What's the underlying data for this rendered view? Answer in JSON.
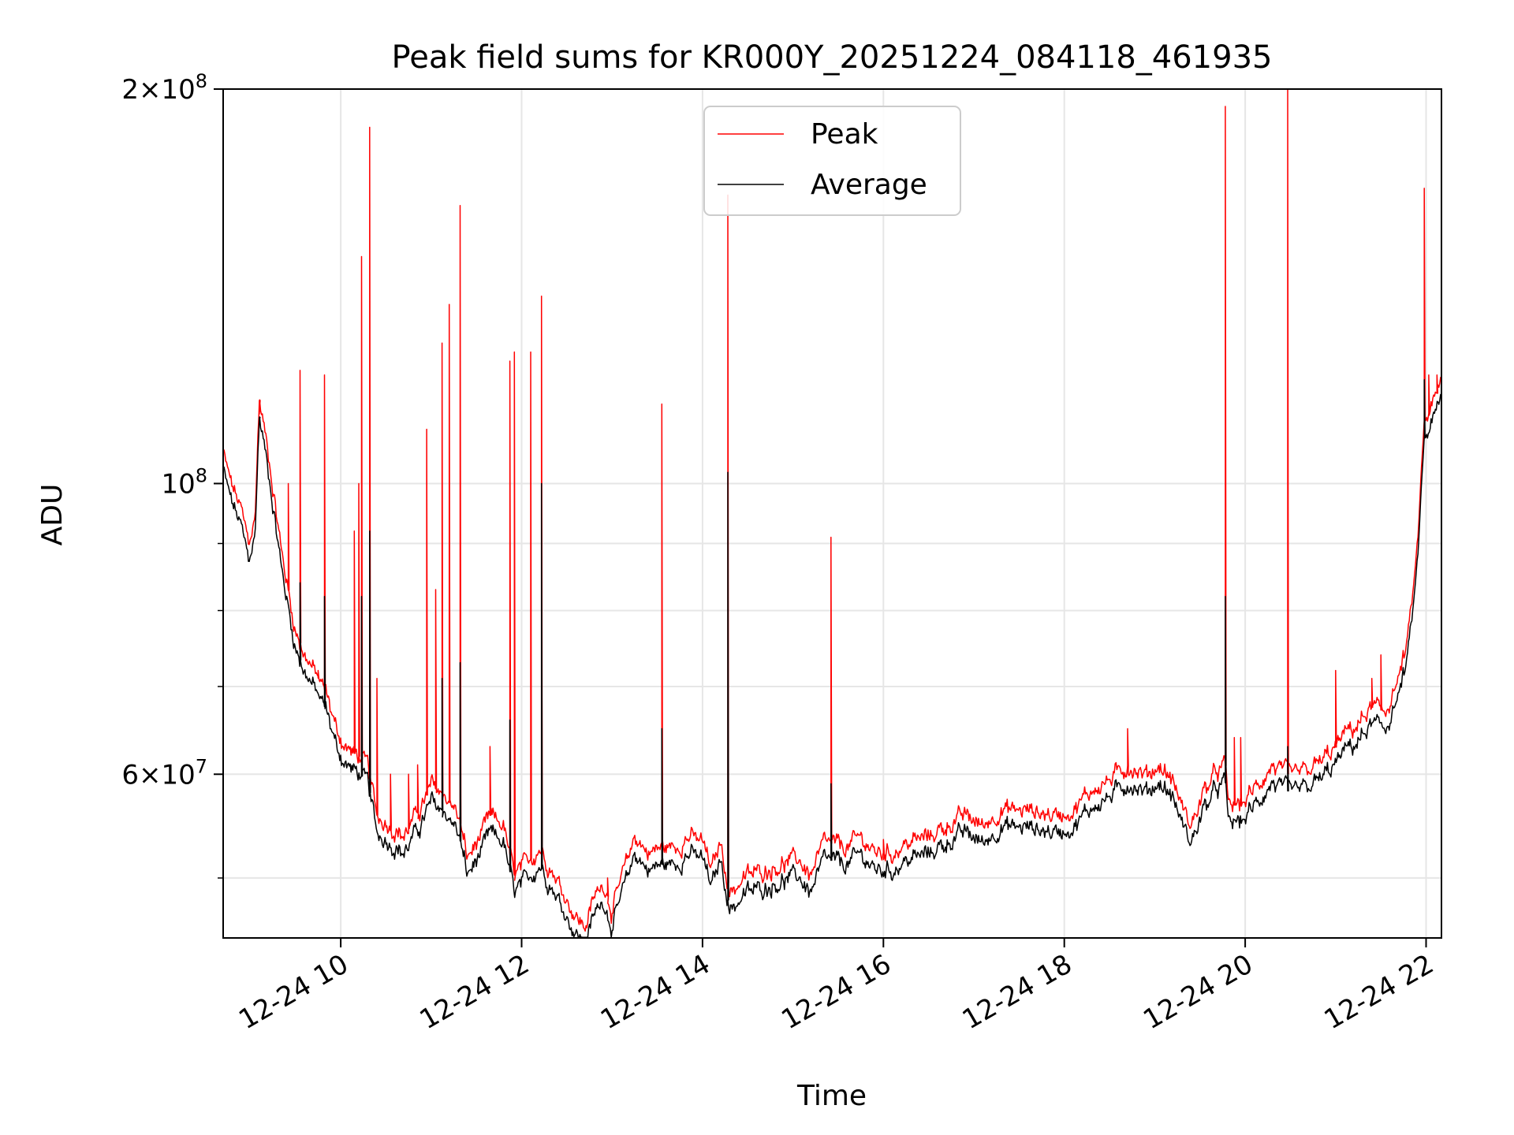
{
  "chart_data": {
    "type": "line",
    "title": "Peak field sums for KR000Y_20251224_084118_461935",
    "xlabel": "Time",
    "ylabel": "ADU",
    "yscale": "log",
    "ylim": [
      45000000,
      200000000
    ],
    "xlim": [
      8.7,
      22.17
    ],
    "grid": true,
    "legend_position": "top-center",
    "x_ticks": [
      {
        "value": 10,
        "label": "12-24 10"
      },
      {
        "value": 12,
        "label": "12-24 12"
      },
      {
        "value": 14,
        "label": "12-24 14"
      },
      {
        "value": 16,
        "label": "12-24 16"
      },
      {
        "value": 18,
        "label": "12-24 18"
      },
      {
        "value": 20,
        "label": "12-24 20"
      },
      {
        "value": 22,
        "label": "12-24 22"
      }
    ],
    "y_ticks_major": [
      {
        "value": 60000000,
        "label_mantissa": "6",
        "label_base": "10",
        "label_exp": "7"
      },
      {
        "value": 100000000,
        "label_mantissa": "",
        "label_base": "10",
        "label_exp": "8"
      },
      {
        "value": 200000000,
        "label_mantissa": "2",
        "label_base": "10",
        "label_exp": "8"
      }
    ],
    "y_gridlines": [
      50000000,
      60000000,
      70000000,
      80000000,
      90000000,
      100000000,
      200000000
    ],
    "baseline": [
      [
        8.7,
        104000000
      ],
      [
        8.78,
        99000000
      ],
      [
        8.9,
        94000000
      ],
      [
        8.98,
        89000000
      ],
      [
        9.05,
        92000000
      ],
      [
        9.1,
        114000000
      ],
      [
        9.2,
        104000000
      ],
      [
        9.35,
        87000000
      ],
      [
        9.5,
        76000000
      ],
      [
        9.6,
        73000000
      ],
      [
        9.75,
        70000000
      ],
      [
        9.85,
        68000000
      ],
      [
        9.95,
        64000000
      ],
      [
        10.05,
        62000000
      ],
      [
        10.2,
        61000000
      ],
      [
        10.3,
        60000000
      ],
      [
        10.4,
        55000000
      ],
      [
        10.55,
        54000000
      ],
      [
        10.7,
        53000000
      ],
      [
        10.9,
        56000000
      ],
      [
        11.0,
        58000000
      ],
      [
        11.15,
        57000000
      ],
      [
        11.3,
        55000000
      ],
      [
        11.4,
        51000000
      ],
      [
        11.55,
        53000000
      ],
      [
        11.65,
        55000000
      ],
      [
        11.8,
        54000000
      ],
      [
        11.92,
        49500000
      ],
      [
        12.05,
        50500000
      ],
      [
        12.2,
        52000000
      ],
      [
        12.4,
        49000000
      ],
      [
        12.5,
        47500000
      ],
      [
        12.6,
        46000000
      ],
      [
        12.7,
        45200000
      ],
      [
        12.8,
        47500000
      ],
      [
        12.9,
        49000000
      ],
      [
        13.0,
        46500000
      ],
      [
        13.1,
        49000000
      ],
      [
        13.25,
        53000000
      ],
      [
        13.4,
        51500000
      ],
      [
        13.55,
        52000000
      ],
      [
        13.7,
        52000000
      ],
      [
        13.85,
        53000000
      ],
      [
        14.0,
        52500000
      ],
      [
        14.1,
        50000000
      ],
      [
        14.2,
        52500000
      ],
      [
        14.3,
        48000000
      ],
      [
        14.5,
        49500000
      ],
      [
        14.7,
        50000000
      ],
      [
        14.9,
        50500000
      ],
      [
        15.05,
        51000000
      ],
      [
        15.2,
        49500000
      ],
      [
        15.35,
        52500000
      ],
      [
        15.6,
        52000000
      ],
      [
        15.75,
        53000000
      ],
      [
        15.9,
        51500000
      ],
      [
        16.1,
        51500000
      ],
      [
        16.3,
        52500000
      ],
      [
        16.5,
        53000000
      ],
      [
        16.7,
        54000000
      ],
      [
        16.9,
        55000000
      ],
      [
        17.1,
        54000000
      ],
      [
        17.3,
        55500000
      ],
      [
        17.6,
        55500000
      ],
      [
        17.9,
        55000000
      ],
      [
        18.1,
        55500000
      ],
      [
        18.3,
        57500000
      ],
      [
        18.5,
        58500000
      ],
      [
        18.7,
        60000000
      ],
      [
        18.9,
        59000000
      ],
      [
        19.05,
        60000000
      ],
      [
        19.2,
        58500000
      ],
      [
        19.32,
        55500000
      ],
      [
        19.4,
        54000000
      ],
      [
        19.55,
        57500000
      ],
      [
        19.7,
        59500000
      ],
      [
        19.78,
        60000000
      ],
      [
        19.82,
        56000000
      ],
      [
        19.95,
        56000000
      ],
      [
        20.1,
        57500000
      ],
      [
        20.3,
        60000000
      ],
      [
        20.5,
        59000000
      ],
      [
        20.7,
        59500000
      ],
      [
        20.85,
        60500000
      ],
      [
        21.0,
        62000000
      ],
      [
        21.1,
        63500000
      ],
      [
        21.25,
        64500000
      ],
      [
        21.4,
        66500000
      ],
      [
        21.55,
        66000000
      ],
      [
        21.7,
        70000000
      ],
      [
        21.8,
        75000000
      ],
      [
        21.9,
        87000000
      ],
      [
        21.98,
        110000000
      ],
      [
        22.05,
        112000000
      ],
      [
        22.17,
        118000000
      ]
    ],
    "series": [
      {
        "name": "Peak",
        "color": "#ff0000",
        "offset_factor": 1.015,
        "spikes": [
          [
            9.1,
            113000000
          ],
          [
            9.42,
            100000000
          ],
          [
            9.55,
            122000000
          ],
          [
            9.75,
            72000000
          ],
          [
            9.82,
            121000000
          ],
          [
            10.15,
            92000000
          ],
          [
            10.2,
            100000000
          ],
          [
            10.23,
            149000000
          ],
          [
            10.32,
            187000000
          ],
          [
            10.4,
            71000000
          ],
          [
            10.55,
            60000000
          ],
          [
            10.75,
            60000000
          ],
          [
            10.85,
            61000000
          ],
          [
            10.95,
            110000000
          ],
          [
            11.05,
            83000000
          ],
          [
            11.12,
            128000000
          ],
          [
            11.2,
            137000000
          ],
          [
            11.32,
            163000000
          ],
          [
            11.65,
            63000000
          ],
          [
            11.87,
            124000000
          ],
          [
            11.92,
            126000000
          ],
          [
            12.1,
            126000000
          ],
          [
            12.22,
            139000000
          ],
          [
            12.95,
            50000000
          ],
          [
            13.55,
            115000000
          ],
          [
            14.28,
            166000000
          ],
          [
            15.42,
            91000000
          ],
          [
            16.0,
            53500000
          ],
          [
            18.7,
            65000000
          ],
          [
            19.78,
            194000000
          ],
          [
            19.88,
            64000000
          ],
          [
            19.95,
            64000000
          ],
          [
            20.47,
            200000000
          ],
          [
            21.0,
            72000000
          ],
          [
            21.4,
            71000000
          ],
          [
            21.5,
            74000000
          ],
          [
            21.98,
            168000000
          ],
          [
            22.03,
            121000000
          ],
          [
            22.12,
            121000000
          ]
        ]
      },
      {
        "name": "Average",
        "color": "#000000",
        "offset_factor": 0.985,
        "spikes": [
          [
            9.1,
            112000000
          ],
          [
            9.55,
            84000000
          ],
          [
            9.82,
            82000000
          ],
          [
            10.23,
            82000000
          ],
          [
            10.32,
            92000000
          ],
          [
            11.12,
            71000000
          ],
          [
            11.32,
            73000000
          ],
          [
            11.87,
            66000000
          ],
          [
            12.22,
            100000000
          ],
          [
            13.55,
            65000000
          ],
          [
            14.28,
            102000000
          ],
          [
            15.42,
            59000000
          ],
          [
            19.78,
            82000000
          ],
          [
            20.47,
            63000000
          ],
          [
            21.98,
            120000000
          ]
        ]
      }
    ]
  }
}
